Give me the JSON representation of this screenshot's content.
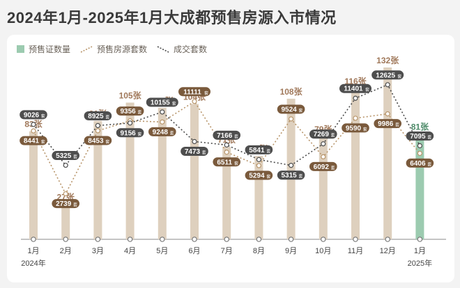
{
  "title": "2024年1月-2025年1月大成都预售房源入市情况",
  "legend": {
    "permits": "预售证数量",
    "listings": "预售房源套数",
    "deals": "成交套数"
  },
  "colors": {
    "bar": "#ded0be",
    "bar_highlight": "#9ccbb0",
    "bar_label": "#a0785a",
    "bar_label_highlight": "#4c8a68",
    "listings_line": "#b8956a",
    "deals_line": "#4a4a4a",
    "listings_pill": "#7a5a3c",
    "deals_pill": "#4e4e4e"
  },
  "chart_data": {
    "type": "bar",
    "categories": [
      "1月",
      "2月",
      "3月",
      "4月",
      "5月",
      "6月",
      "7月",
      "8月",
      "9月",
      "10月",
      "11月",
      "12月",
      "1月"
    ],
    "year_labels": [
      "2024年",
      "2025年"
    ],
    "unit_bar": "张",
    "unit_line": "套",
    "series": [
      {
        "name": "预售证数量",
        "type": "bar",
        "values": [
          83,
          27,
          91,
          105,
          101,
          104,
          71,
          64,
          108,
          79,
          116,
          132,
          81
        ]
      },
      {
        "name": "预售房源套数",
        "type": "line",
        "values": [
          8441,
          2739,
          8453,
          9356,
          9248,
          11111,
          6511,
          5294,
          9524,
          6092,
          9590,
          9986,
          6406
        ]
      },
      {
        "name": "成交套数",
        "type": "line",
        "values": [
          9026,
          5325,
          8925,
          9156,
          10155,
          7473,
          7166,
          5841,
          5315,
          7269,
          11401,
          12625,
          7095
        ]
      }
    ],
    "highlight_index": 12,
    "ylim_bar": [
      0,
      140
    ],
    "ylim_line": [
      0,
      14000
    ],
    "grid": false,
    "legend_position": "top-left"
  }
}
